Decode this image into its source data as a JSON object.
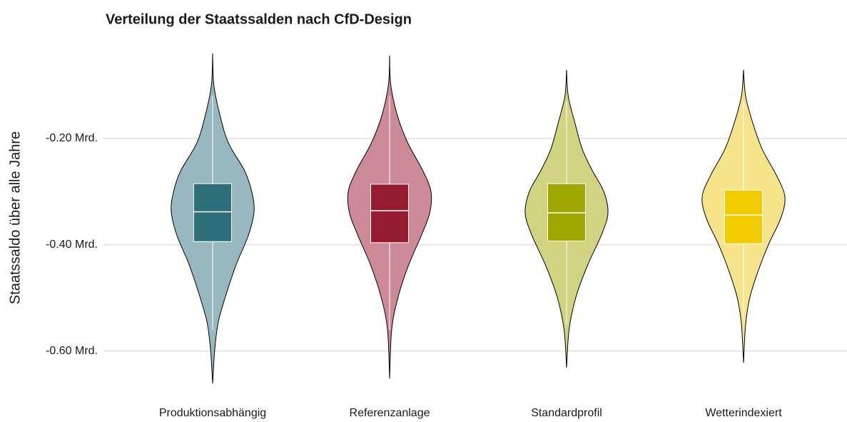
{
  "chart_data": {
    "type": "violin",
    "title": "Verteilung der Staatssalden nach CfD-Design",
    "y_label": "Staatssaldo über alle Jahre",
    "categories": [
      "Produktionsabhängig",
      "Referenzanlage",
      "Standardprofil",
      "Wetterindexiert"
    ],
    "ylim": [
      -0.665,
      -0.02
    ],
    "yticks": [
      {
        "value": -0.6,
        "label": "-0.60 Mrd."
      },
      {
        "value": -0.4,
        "label": "-0.40 Mrd."
      },
      {
        "value": -0.2,
        "label": "-0.20 Mrd."
      }
    ],
    "grid": true,
    "violins": [
      {
        "color": "#98b8bf",
        "box_color": "#2e6f7a",
        "q1": -0.394,
        "median": -0.338,
        "q3": -0.285,
        "whisker_low": -0.56,
        "whisker_high": -0.12,
        "y": [
          -0.04,
          -0.1,
          -0.154,
          -0.208,
          -0.262,
          -0.302,
          -0.338,
          -0.383,
          -0.437,
          -0.49,
          -0.544,
          -0.598,
          -0.661
        ],
        "density": [
          0,
          0.03,
          0.17,
          0.38,
          0.78,
          0.95,
          1,
          0.86,
          0.57,
          0.34,
          0.14,
          0.05,
          0
        ]
      },
      {
        "color": "#cc8a96",
        "box_color": "#951b30",
        "q1": -0.396,
        "median": -0.336,
        "q3": -0.286,
        "whisker_low": -0.56,
        "whisker_high": -0.12,
        "y": [
          -0.044,
          -0.1,
          -0.16,
          -0.21,
          -0.26,
          -0.3,
          -0.34,
          -0.38,
          -0.44,
          -0.5,
          -0.56,
          -0.652
        ],
        "density": [
          0,
          0.03,
          0.2,
          0.45,
          0.8,
          1,
          0.97,
          0.78,
          0.45,
          0.2,
          0.05,
          0
        ]
      },
      {
        "color": "#d0d480",
        "box_color": "#9ea800",
        "q1": -0.393,
        "median": -0.34,
        "q3": -0.285,
        "whisker_low": -0.55,
        "whisker_high": -0.13,
        "y": [
          -0.071,
          -0.12,
          -0.17,
          -0.22,
          -0.26,
          -0.3,
          -0.34,
          -0.38,
          -0.44,
          -0.5,
          -0.56,
          -0.631
        ],
        "density": [
          0,
          0.04,
          0.2,
          0.38,
          0.62,
          0.9,
          1,
          0.85,
          0.5,
          0.22,
          0.06,
          0
        ]
      },
      {
        "color": "#f5e48a",
        "box_color": "#f0cc00",
        "q1": -0.398,
        "median": -0.344,
        "q3": -0.297,
        "whisker_low": -0.54,
        "whisker_high": -0.13,
        "y": [
          -0.071,
          -0.12,
          -0.17,
          -0.22,
          -0.27,
          -0.31,
          -0.35,
          -0.4,
          -0.45,
          -0.5,
          -0.55,
          -0.622
        ],
        "density": [
          0,
          0.05,
          0.22,
          0.45,
          0.8,
          1,
          0.9,
          0.6,
          0.35,
          0.15,
          0.05,
          0
        ]
      }
    ]
  }
}
